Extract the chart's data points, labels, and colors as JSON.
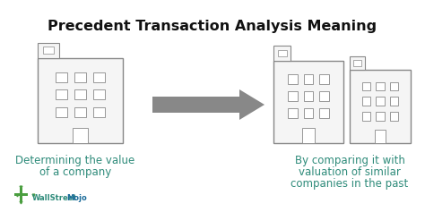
{
  "title": "Precedent Transaction Analysis Meaning",
  "title_fontsize": 11.5,
  "title_fontweight": "bold",
  "title_color": "#111111",
  "left_text_line1": "Determining the value",
  "left_text_line2": "of a company",
  "right_text_line1": "By comparing it with",
  "right_text_line2": "valuation of similar",
  "right_text_line3": "companies in the past",
  "text_color": "#2e8b7a",
  "text_fontsize": 8.5,
  "building_face": "#f5f5f5",
  "building_edge": "#888888",
  "window_face": "#ffffff",
  "arrow_color": "#888888",
  "bg_color": "#ffffff",
  "wsm_color_wall": "#2e8b7a",
  "wsm_color_mojo": "#1a6b9a",
  "logo_color": "#4a9e3f"
}
